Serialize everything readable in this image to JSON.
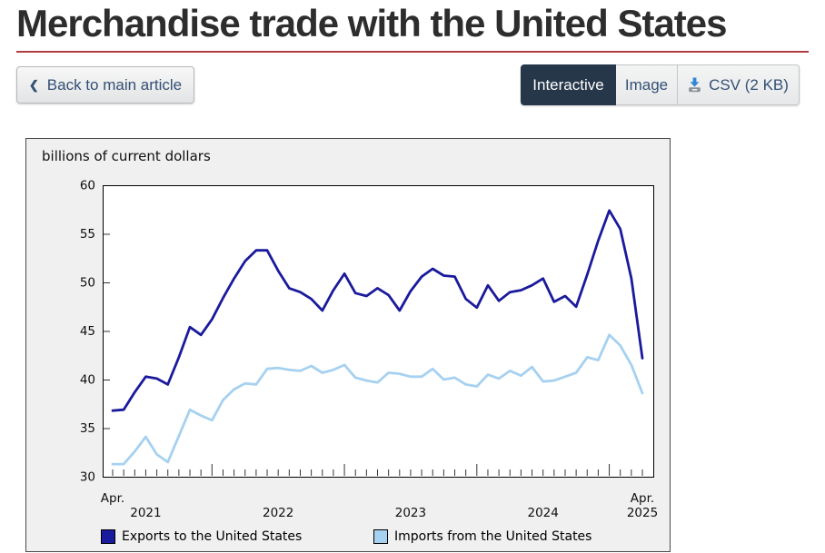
{
  "page": {
    "title": "Merchandise trade with the United States"
  },
  "toolbar": {
    "back_label": "Back to main article",
    "view_tabs": [
      {
        "label": "Interactive",
        "active": true
      },
      {
        "label": "Image",
        "active": false
      },
      {
        "label": "CSV (2 KB)",
        "active": false,
        "icon": "download-icon"
      }
    ]
  },
  "colors": {
    "accent_rule": "#af3c43",
    "active_tab_bg": "#26374a",
    "link_blue": "#335075",
    "exports_line": "#1a1a9c",
    "imports_line": "#a6d1f0"
  },
  "chart_data": {
    "type": "line",
    "title": "billions of current dollars",
    "x_frequency": "monthly",
    "x_start": "2021-04",
    "x_end": "2025-04",
    "ylim": [
      30,
      60
    ],
    "y_ticks": [
      30,
      35,
      40,
      45,
      50,
      55,
      60
    ],
    "grid": false,
    "legend_position": "bottom",
    "x_axis_labels": {
      "month_row": [
        {
          "text": "Apr.",
          "month": "2021-04"
        },
        {
          "text": "Apr.",
          "month": "2025-04"
        }
      ],
      "year_row": [
        {
          "text": "2021",
          "center_month": "2021-07"
        },
        {
          "text": "2022",
          "center_month": "2022-07"
        },
        {
          "text": "2023",
          "center_month": "2023-07"
        },
        {
          "text": "2024",
          "center_month": "2024-07"
        },
        {
          "text": "2025",
          "center_month": "2025-04"
        }
      ]
    },
    "series": [
      {
        "name": "Exports to the United States",
        "color": "#1a1a9c",
        "values": [
          36.8,
          36.9,
          38.7,
          40.3,
          40.1,
          39.5,
          42.3,
          45.4,
          44.6,
          46.2,
          48.4,
          50.4,
          52.2,
          53.3,
          53.3,
          51.2,
          49.4,
          49.0,
          48.3,
          47.1,
          49.2,
          50.9,
          48.9,
          48.6,
          49.4,
          48.7,
          47.1,
          49.1,
          50.6,
          51.4,
          50.7,
          50.6,
          48.3,
          47.4,
          49.7,
          48.1,
          49.0,
          49.2,
          49.7,
          50.4,
          48.0,
          48.6,
          47.5,
          50.8,
          54.3,
          57.4,
          55.5,
          50.4,
          42.2
        ]
      },
      {
        "name": "Imports from the United States",
        "color": "#a6d1f0",
        "values": [
          31.3,
          31.3,
          32.6,
          34.1,
          32.3,
          31.5,
          34.2,
          36.9,
          36.3,
          35.8,
          37.9,
          39.0,
          39.6,
          39.5,
          41.1,
          41.2,
          41.0,
          40.9,
          41.4,
          40.7,
          41.0,
          41.5,
          40.2,
          39.9,
          39.7,
          40.7,
          40.6,
          40.3,
          40.3,
          41.1,
          40.0,
          40.2,
          39.5,
          39.3,
          40.5,
          40.1,
          40.9,
          40.4,
          41.3,
          39.8,
          39.9,
          40.3,
          40.7,
          42.3,
          42.0,
          44.6,
          43.5,
          41.5,
          38.6
        ]
      }
    ]
  }
}
